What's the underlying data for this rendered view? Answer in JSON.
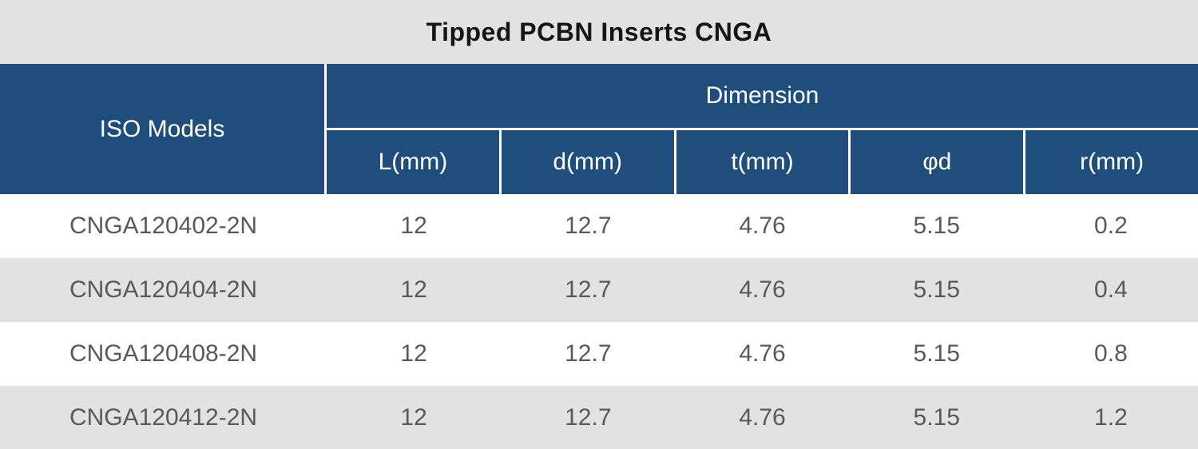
{
  "title": "Tipped PCBN Inserts CNGA",
  "table": {
    "iso_header": "ISO Models",
    "dimension_header": "Dimension",
    "sub_headers": [
      "L(mm)",
      "d(mm)",
      "t(mm)",
      "φd",
      "r(mm)"
    ],
    "rows": [
      {
        "model": "CNGA120402-2N",
        "values": [
          "12",
          "12.7",
          "4.76",
          "5.15",
          "0.2"
        ]
      },
      {
        "model": "CNGA120404-2N",
        "values": [
          "12",
          "12.7",
          "4.76",
          "5.15",
          "0.4"
        ]
      },
      {
        "model": "CNGA120408-2N",
        "values": [
          "12",
          "12.7",
          "4.76",
          "5.15",
          "0.8"
        ]
      },
      {
        "model": "CNGA120412-2N",
        "values": [
          "12",
          "12.7",
          "4.76",
          "5.15",
          "1.2"
        ]
      }
    ]
  },
  "colors": {
    "header_blue": "#1f4e7c",
    "title_bar_gray": "#e2e2e2",
    "row_alt_gray": "#e2e2e2",
    "row_white": "#ffffff",
    "header_text": "#ffffff",
    "title_text": "#151515",
    "data_text": "#58595b"
  }
}
